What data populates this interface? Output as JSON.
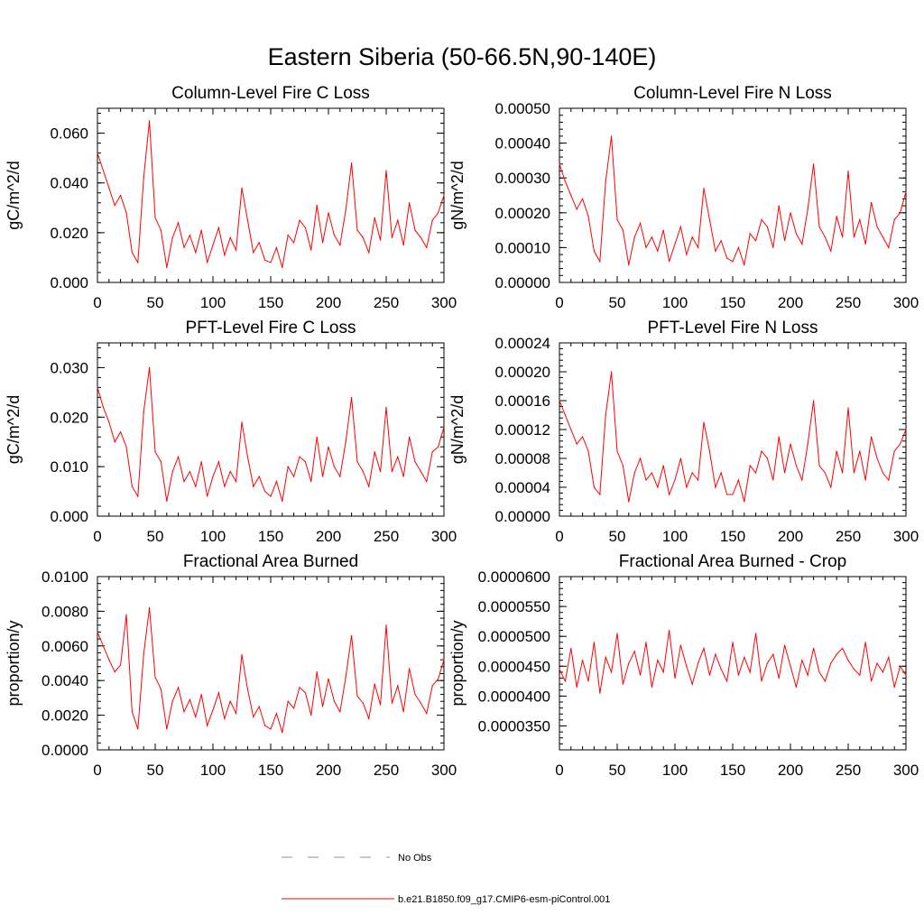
{
  "title": "Eastern Siberia (50-66.5N,90-140E)",
  "colors": {
    "series": "#ff0000",
    "obs": "#8a8ac8",
    "axis": "#000000"
  },
  "legend": {
    "items": [
      {
        "label": "No Obs",
        "style": "dashed",
        "color": "#8a8ac8"
      },
      {
        "label": "b.e21.B1850.f09_g17.CMIP6-esm-piControl.001",
        "style": "solid",
        "color": "#ff0000"
      }
    ]
  },
  "chart_data": [
    {
      "type": "line",
      "position": "top-left",
      "title": "Column-Level Fire C Loss",
      "xlabel": "",
      "ylabel": "gC/m^2/d",
      "xlim": [
        0,
        300
      ],
      "ylim": [
        0,
        0.07
      ],
      "xticks": [
        "0",
        "50",
        "100",
        "150",
        "200",
        "250",
        "300"
      ],
      "yticks": [
        {
          "v": 0.0,
          "label": "0.000"
        },
        {
          "v": 0.02,
          "label": "0.020"
        },
        {
          "v": 0.04,
          "label": "0.040"
        },
        {
          "v": 0.06,
          "label": "0.060"
        }
      ],
      "x": [
        0,
        5,
        10,
        15,
        20,
        25,
        30,
        35,
        40,
        45,
        50,
        55,
        60,
        65,
        70,
        75,
        80,
        85,
        90,
        95,
        100,
        105,
        110,
        115,
        120,
        125,
        130,
        135,
        140,
        145,
        150,
        155,
        160,
        165,
        170,
        175,
        180,
        185,
        190,
        195,
        200,
        205,
        210,
        215,
        220,
        225,
        230,
        235,
        240,
        245,
        250,
        255,
        260,
        265,
        270,
        275,
        280,
        285,
        290,
        295,
        300
      ],
      "series": [
        {
          "name": "b.e21.B1850.f09_g17.CMIP6-esm-piControl.001",
          "values": [
            0.052,
            0.045,
            0.038,
            0.031,
            0.035,
            0.028,
            0.012,
            0.008,
            0.042,
            0.065,
            0.026,
            0.021,
            0.006,
            0.018,
            0.024,
            0.014,
            0.019,
            0.012,
            0.021,
            0.008,
            0.015,
            0.022,
            0.011,
            0.018,
            0.013,
            0.038,
            0.025,
            0.012,
            0.016,
            0.009,
            0.008,
            0.014,
            0.006,
            0.019,
            0.016,
            0.025,
            0.022,
            0.013,
            0.031,
            0.016,
            0.028,
            0.019,
            0.015,
            0.029,
            0.048,
            0.021,
            0.018,
            0.012,
            0.026,
            0.017,
            0.045,
            0.018,
            0.025,
            0.015,
            0.032,
            0.021,
            0.018,
            0.014,
            0.025,
            0.028,
            0.035
          ]
        }
      ]
    },
    {
      "type": "line",
      "position": "top-right",
      "title": "Column-Level Fire N Loss",
      "xlabel": "",
      "ylabel": "gN/m^2/d",
      "xlim": [
        0,
        300
      ],
      "ylim": [
        0,
        0.0005
      ],
      "xticks": [
        "0",
        "50",
        "100",
        "150",
        "200",
        "250",
        "300"
      ],
      "yticks": [
        {
          "v": 0.0,
          "label": "0.00000"
        },
        {
          "v": 0.0001,
          "label": "0.00010"
        },
        {
          "v": 0.0002,
          "label": "0.00020"
        },
        {
          "v": 0.0003,
          "label": "0.00030"
        },
        {
          "v": 0.0004,
          "label": "0.00040"
        },
        {
          "v": 0.0005,
          "label": "0.00050"
        }
      ],
      "x": [
        0,
        5,
        10,
        15,
        20,
        25,
        30,
        35,
        40,
        45,
        50,
        55,
        60,
        65,
        70,
        75,
        80,
        85,
        90,
        95,
        100,
        105,
        110,
        115,
        120,
        125,
        130,
        135,
        140,
        145,
        150,
        155,
        160,
        165,
        170,
        175,
        180,
        185,
        190,
        195,
        200,
        205,
        210,
        215,
        220,
        225,
        230,
        235,
        240,
        245,
        250,
        255,
        260,
        265,
        270,
        275,
        280,
        285,
        290,
        295,
        300
      ],
      "series": [
        {
          "name": "b.e21.B1850.f09_g17.CMIP6-esm-piControl.001",
          "values": [
            0.00034,
            0.00029,
            0.00025,
            0.00021,
            0.00024,
            0.00019,
            9e-05,
            6e-05,
            0.00029,
            0.00042,
            0.00018,
            0.00015,
            5e-05,
            0.00013,
            0.00017,
            0.0001,
            0.00013,
            9e-05,
            0.00015,
            6e-05,
            0.00011,
            0.00016,
            8e-05,
            0.00013,
            0.0001,
            0.00027,
            0.00018,
            9e-05,
            0.00012,
            7e-05,
            6e-05,
            0.0001,
            5e-05,
            0.00014,
            0.00012,
            0.00018,
            0.00016,
            0.0001,
            0.00022,
            0.00012,
            0.0002,
            0.00014,
            0.00011,
            0.00021,
            0.00034,
            0.00016,
            0.00013,
            9e-05,
            0.00019,
            0.00013,
            0.00032,
            0.00013,
            0.00018,
            0.00011,
            0.00023,
            0.00016,
            0.00013,
            0.0001,
            0.00018,
            0.0002,
            0.00026
          ]
        }
      ]
    },
    {
      "type": "line",
      "position": "middle-left",
      "title": "PFT-Level Fire C Loss",
      "xlabel": "",
      "ylabel": "gC/m^2/d",
      "xlim": [
        0,
        300
      ],
      "ylim": [
        0,
        0.035
      ],
      "xticks": [
        "0",
        "50",
        "100",
        "150",
        "200",
        "250",
        "300"
      ],
      "yticks": [
        {
          "v": 0.0,
          "label": "0.000"
        },
        {
          "v": 0.01,
          "label": "0.010"
        },
        {
          "v": 0.02,
          "label": "0.020"
        },
        {
          "v": 0.03,
          "label": "0.030"
        }
      ],
      "x": [
        0,
        5,
        10,
        15,
        20,
        25,
        30,
        35,
        40,
        45,
        50,
        55,
        60,
        65,
        70,
        75,
        80,
        85,
        90,
        95,
        100,
        105,
        110,
        115,
        120,
        125,
        130,
        135,
        140,
        145,
        150,
        155,
        160,
        165,
        170,
        175,
        180,
        185,
        190,
        195,
        200,
        205,
        210,
        215,
        220,
        225,
        230,
        235,
        240,
        245,
        250,
        255,
        260,
        265,
        270,
        275,
        280,
        285,
        290,
        295,
        300
      ],
      "series": [
        {
          "name": "b.e21.B1850.f09_g17.CMIP6-esm-piControl.001",
          "values": [
            0.026,
            0.022,
            0.019,
            0.015,
            0.017,
            0.014,
            0.006,
            0.004,
            0.021,
            0.03,
            0.013,
            0.011,
            0.003,
            0.009,
            0.012,
            0.007,
            0.009,
            0.006,
            0.011,
            0.004,
            0.008,
            0.011,
            0.006,
            0.009,
            0.007,
            0.019,
            0.012,
            0.006,
            0.008,
            0.005,
            0.004,
            0.007,
            0.003,
            0.01,
            0.008,
            0.012,
            0.011,
            0.007,
            0.016,
            0.008,
            0.014,
            0.01,
            0.008,
            0.015,
            0.024,
            0.011,
            0.009,
            0.006,
            0.013,
            0.009,
            0.022,
            0.009,
            0.012,
            0.008,
            0.016,
            0.011,
            0.009,
            0.007,
            0.013,
            0.014,
            0.018
          ]
        }
      ]
    },
    {
      "type": "line",
      "position": "middle-right",
      "title": "PFT-Level Fire N Loss",
      "xlabel": "",
      "ylabel": "gN/m^2/d",
      "xlim": [
        0,
        300
      ],
      "ylim": [
        0,
        0.00024
      ],
      "xticks": [
        "0",
        "50",
        "100",
        "150",
        "200",
        "250",
        "300"
      ],
      "yticks": [
        {
          "v": 0.0,
          "label": "0.00000"
        },
        {
          "v": 4e-05,
          "label": "0.00004"
        },
        {
          "v": 8e-05,
          "label": "0.00008"
        },
        {
          "v": 0.00012,
          "label": "0.00012"
        },
        {
          "v": 0.00016,
          "label": "0.00016"
        },
        {
          "v": 0.0002,
          "label": "0.00020"
        },
        {
          "v": 0.00024,
          "label": "0.00024"
        }
      ],
      "x": [
        0,
        5,
        10,
        15,
        20,
        25,
        30,
        35,
        40,
        45,
        50,
        55,
        60,
        65,
        70,
        75,
        80,
        85,
        90,
        95,
        100,
        105,
        110,
        115,
        120,
        125,
        130,
        135,
        140,
        145,
        150,
        155,
        160,
        165,
        170,
        175,
        180,
        185,
        190,
        195,
        200,
        205,
        210,
        215,
        220,
        225,
        230,
        235,
        240,
        245,
        250,
        255,
        260,
        265,
        270,
        275,
        280,
        285,
        290,
        295,
        300
      ],
      "series": [
        {
          "name": "b.e21.B1850.f09_g17.CMIP6-esm-piControl.001",
          "values": [
            0.00016,
            0.00014,
            0.00012,
            0.0001,
            0.00011,
            9e-05,
            4e-05,
            3e-05,
            0.00014,
            0.0002,
            9e-05,
            7e-05,
            2e-05,
            6e-05,
            8e-05,
            5e-05,
            6e-05,
            4e-05,
            7e-05,
            3e-05,
            5e-05,
            8e-05,
            4e-05,
            6e-05,
            5e-05,
            0.00013,
            9e-05,
            4e-05,
            6e-05,
            3e-05,
            3e-05,
            5e-05,
            2e-05,
            7e-05,
            6e-05,
            9e-05,
            8e-05,
            5e-05,
            0.00011,
            6e-05,
            0.0001,
            7e-05,
            5e-05,
            0.0001,
            0.00016,
            7e-05,
            6e-05,
            4e-05,
            9e-05,
            6e-05,
            0.00015,
            6e-05,
            9e-05,
            5e-05,
            0.00011,
            8e-05,
            6e-05,
            5e-05,
            9e-05,
            0.0001,
            0.00012
          ]
        }
      ]
    },
    {
      "type": "line",
      "position": "bottom-left",
      "title": "Fractional Area Burned",
      "xlabel": "",
      "ylabel": "proportion/y",
      "xlim": [
        0,
        300
      ],
      "ylim": [
        0,
        0.01
      ],
      "xticks": [
        "0",
        "50",
        "100",
        "150",
        "200",
        "250",
        "300"
      ],
      "yticks": [
        {
          "v": 0.0,
          "label": "0.0000"
        },
        {
          "v": 0.002,
          "label": "0.0020"
        },
        {
          "v": 0.004,
          "label": "0.0040"
        },
        {
          "v": 0.006,
          "label": "0.0060"
        },
        {
          "v": 0.008,
          "label": "0.0080"
        },
        {
          "v": 0.01,
          "label": "0.0100"
        }
      ],
      "x": [
        0,
        5,
        10,
        15,
        20,
        25,
        30,
        35,
        40,
        45,
        50,
        55,
        60,
        65,
        70,
        75,
        80,
        85,
        90,
        95,
        100,
        105,
        110,
        115,
        120,
        125,
        130,
        135,
        140,
        145,
        150,
        155,
        160,
        165,
        170,
        175,
        180,
        185,
        190,
        195,
        200,
        205,
        210,
        215,
        220,
        225,
        230,
        235,
        240,
        245,
        250,
        255,
        260,
        265,
        270,
        275,
        280,
        285,
        290,
        295,
        300
      ],
      "series": [
        {
          "name": "b.e21.B1850.f09_g17.CMIP6-esm-piControl.001",
          "values": [
            0.0068,
            0.006,
            0.0052,
            0.0045,
            0.0049,
            0.0078,
            0.0022,
            0.0012,
            0.0055,
            0.0082,
            0.0042,
            0.0035,
            0.0012,
            0.0028,
            0.0036,
            0.0022,
            0.0029,
            0.0019,
            0.0032,
            0.0014,
            0.0023,
            0.0033,
            0.0018,
            0.0028,
            0.0021,
            0.0055,
            0.0035,
            0.0019,
            0.0025,
            0.0014,
            0.0012,
            0.0021,
            0.001,
            0.0028,
            0.0024,
            0.0036,
            0.0033,
            0.002,
            0.0045,
            0.0025,
            0.0041,
            0.0028,
            0.0022,
            0.0042,
            0.0066,
            0.0031,
            0.0027,
            0.0018,
            0.0038,
            0.0026,
            0.0072,
            0.0027,
            0.0037,
            0.0022,
            0.0047,
            0.0032,
            0.0027,
            0.0021,
            0.0037,
            0.0041,
            0.0052
          ]
        }
      ]
    },
    {
      "type": "line",
      "position": "bottom-right",
      "title": "Fractional Area Burned - Crop",
      "xlabel": "",
      "ylabel": "proportion/y",
      "xlim": [
        0,
        300
      ],
      "ylim": [
        3.1e-05,
        6e-05
      ],
      "xticks": [
        "0",
        "50",
        "100",
        "150",
        "200",
        "250",
        "300"
      ],
      "yticks": [
        {
          "v": 3.5e-05,
          "label": "0.0000350"
        },
        {
          "v": 4e-05,
          "label": "0.0000400"
        },
        {
          "v": 4.5e-05,
          "label": "0.0000450"
        },
        {
          "v": 5e-05,
          "label": "0.0000500"
        },
        {
          "v": 5.5e-05,
          "label": "0.0000550"
        },
        {
          "v": 6e-05,
          "label": "0.0000600"
        }
      ],
      "x": [
        0,
        5,
        10,
        15,
        20,
        25,
        30,
        35,
        40,
        45,
        50,
        55,
        60,
        65,
        70,
        75,
        80,
        85,
        90,
        95,
        100,
        105,
        110,
        115,
        120,
        125,
        130,
        135,
        140,
        145,
        150,
        155,
        160,
        165,
        170,
        175,
        180,
        185,
        190,
        195,
        200,
        205,
        210,
        215,
        220,
        225,
        230,
        235,
        240,
        245,
        250,
        255,
        260,
        265,
        270,
        275,
        280,
        285,
        290,
        295,
        300
      ],
      "series": [
        {
          "name": "b.e21.B1850.f09_g17.CMIP6-esm-piControl.001",
          "values": [
            4.45e-05,
            4.25e-05,
            4.8e-05,
            4.15e-05,
            4.6e-05,
            4.25e-05,
            4.9e-05,
            4.05e-05,
            4.65e-05,
            4.4e-05,
            5.05e-05,
            4.2e-05,
            4.55e-05,
            4.75e-05,
            4.35e-05,
            4.9e-05,
            4.15e-05,
            4.6e-05,
            4.4e-05,
            5.1e-05,
            4.3e-05,
            4.85e-05,
            4.5e-05,
            4.2e-05,
            4.55e-05,
            4.8e-05,
            4.35e-05,
            4.7e-05,
            4.45e-05,
            4.25e-05,
            4.9e-05,
            4.35e-05,
            4.65e-05,
            4.4e-05,
            5.05e-05,
            4.25e-05,
            4.55e-05,
            4.7e-05,
            4.3e-05,
            4.85e-05,
            4.5e-05,
            4.15e-05,
            4.6e-05,
            4.35e-05,
            4.8e-05,
            4.4e-05,
            4.25e-05,
            4.55e-05,
            4.7e-05,
            4.8e-05,
            4.6e-05,
            4.45e-05,
            4.35e-05,
            4.9e-05,
            4.25e-05,
            4.55e-05,
            4.4e-05,
            4.65e-05,
            4.15e-05,
            4.5e-05,
            4.35e-05
          ]
        }
      ]
    }
  ]
}
